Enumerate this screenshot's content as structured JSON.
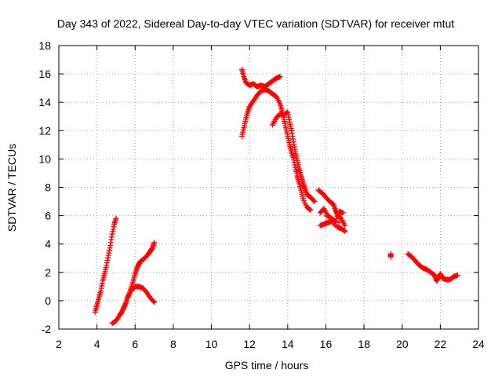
{
  "chart_data": {
    "type": "scatter",
    "title": "Day 343 of 2022, Sidereal Day-to-day VTEC variation (SDTVAR) for receiver mtut",
    "xlabel": "GPS time / hours",
    "ylabel": "SDTVAR / TECUs",
    "xlim": [
      2,
      24
    ],
    "ylim": [
      -2,
      18
    ],
    "grid": true,
    "xticks": [
      "2",
      "4",
      "6",
      "8",
      "10",
      "12",
      "14",
      "16",
      "18",
      "20",
      "22",
      "24"
    ],
    "yticks": [
      "-2",
      "0",
      "2",
      "4",
      "6",
      "8",
      "10",
      "12",
      "14",
      "16",
      "18"
    ],
    "marker": "+",
    "color": "#ff0000",
    "series": [
      {
        "name": "s1",
        "points": [
          [
            3.9,
            -0.8
          ],
          [
            4.0,
            -0.3
          ],
          [
            4.1,
            0.2
          ],
          [
            4.2,
            0.7
          ],
          [
            4.3,
            1.4
          ],
          [
            4.4,
            1.9
          ],
          [
            4.5,
            2.5
          ],
          [
            4.6,
            3.2
          ],
          [
            4.7,
            3.9
          ],
          [
            4.8,
            4.7
          ],
          [
            4.9,
            5.4
          ],
          [
            5.0,
            5.8
          ]
        ]
      },
      {
        "name": "s2",
        "points": [
          [
            4.8,
            -1.6
          ],
          [
            5.0,
            -1.4
          ],
          [
            5.2,
            -1.0
          ],
          [
            5.3,
            -0.8
          ],
          [
            5.4,
            -0.5
          ],
          [
            5.5,
            -0.2
          ],
          [
            5.6,
            0.2
          ],
          [
            5.7,
            0.5
          ],
          [
            5.8,
            0.9
          ],
          [
            5.9,
            1.4
          ],
          [
            6.0,
            1.9
          ],
          [
            6.1,
            2.3
          ],
          [
            6.2,
            2.6
          ],
          [
            6.3,
            2.8
          ],
          [
            6.5,
            3.0
          ],
          [
            6.7,
            3.3
          ],
          [
            6.8,
            3.5
          ],
          [
            6.9,
            3.7
          ],
          [
            7.0,
            4.1
          ]
        ]
      },
      {
        "name": "s3",
        "points": [
          [
            5.8,
            0.7
          ],
          [
            6.0,
            1.0
          ],
          [
            6.2,
            1.0
          ],
          [
            6.4,
            0.9
          ],
          [
            6.6,
            0.6
          ],
          [
            6.8,
            0.2
          ],
          [
            7.0,
            -0.1
          ]
        ]
      },
      {
        "name": "s4",
        "points": [
          [
            11.6,
            16.3
          ],
          [
            11.7,
            15.8
          ],
          [
            11.8,
            15.4
          ],
          [
            12.0,
            15.2
          ],
          [
            12.2,
            15.3
          ],
          [
            12.4,
            15.1
          ],
          [
            12.6,
            15.2
          ],
          [
            12.8,
            15.1
          ],
          [
            13.0,
            15.3
          ],
          [
            13.2,
            15.5
          ],
          [
            13.4,
            15.7
          ],
          [
            13.6,
            15.8
          ]
        ]
      },
      {
        "name": "s5",
        "points": [
          [
            11.6,
            11.6
          ],
          [
            11.7,
            12.2
          ],
          [
            11.8,
            12.8
          ],
          [
            11.9,
            13.3
          ],
          [
            12.0,
            13.7
          ],
          [
            12.2,
            14.1
          ],
          [
            12.4,
            14.5
          ],
          [
            12.6,
            14.8
          ],
          [
            12.8,
            14.9
          ],
          [
            13.0,
            14.8
          ],
          [
            13.2,
            14.6
          ],
          [
            13.4,
            14.4
          ],
          [
            13.6,
            13.9
          ],
          [
            13.7,
            13.4
          ],
          [
            13.8,
            12.8
          ],
          [
            13.9,
            12.2
          ],
          [
            14.0,
            11.6
          ],
          [
            14.1,
            11.0
          ],
          [
            14.2,
            10.5
          ],
          [
            14.3,
            10.1
          ],
          [
            14.4,
            9.4
          ],
          [
            14.5,
            8.8
          ],
          [
            14.6,
            8.3
          ],
          [
            14.7,
            7.8
          ],
          [
            14.8,
            7.2
          ],
          [
            15.0,
            6.6
          ],
          [
            15.2,
            6.4
          ]
        ]
      },
      {
        "name": "s6",
        "points": [
          [
            13.2,
            12.4
          ],
          [
            13.4,
            12.9
          ],
          [
            13.6,
            13.2
          ],
          [
            13.8,
            13.1
          ],
          [
            14.0,
            13.3
          ],
          [
            14.1,
            12.6
          ],
          [
            14.2,
            12.0
          ],
          [
            14.3,
            11.2
          ],
          [
            14.4,
            10.5
          ],
          [
            14.5,
            9.9
          ],
          [
            14.6,
            9.3
          ],
          [
            14.7,
            8.8
          ],
          [
            14.8,
            8.3
          ],
          [
            14.9,
            7.9
          ],
          [
            15.0,
            7.5
          ],
          [
            15.2,
            7.3
          ],
          [
            15.4,
            7.0
          ]
        ]
      },
      {
        "name": "s7",
        "points": [
          [
            15.6,
            7.8
          ],
          [
            15.8,
            7.6
          ],
          [
            16.0,
            7.3
          ],
          [
            16.2,
            7.0
          ],
          [
            16.4,
            6.8
          ],
          [
            16.5,
            6.4
          ],
          [
            16.6,
            6.1
          ],
          [
            16.8,
            5.8
          ],
          [
            17.0,
            5.3
          ],
          [
            15.7,
            6.2
          ],
          [
            15.9,
            6.5
          ],
          [
            16.1,
            6.0
          ],
          [
            16.3,
            5.8
          ],
          [
            16.5,
            5.6
          ],
          [
            16.7,
            6.3
          ],
          [
            16.9,
            6.2
          ],
          [
            15.7,
            5.3
          ],
          [
            15.9,
            5.4
          ],
          [
            16.1,
            5.5
          ],
          [
            16.3,
            5.6
          ],
          [
            16.6,
            5.2
          ],
          [
            16.8,
            5.1
          ],
          [
            17.0,
            4.9
          ]
        ]
      },
      {
        "name": "s8",
        "points": [
          [
            19.4,
            3.3
          ],
          [
            19.4,
            3.1
          ]
        ]
      },
      {
        "name": "s9",
        "points": [
          [
            20.3,
            3.3
          ],
          [
            20.5,
            3.1
          ],
          [
            20.7,
            2.8
          ],
          [
            20.9,
            2.5
          ],
          [
            21.1,
            2.3
          ],
          [
            21.3,
            2.2
          ],
          [
            21.5,
            2.0
          ],
          [
            21.7,
            1.8
          ],
          [
            21.8,
            1.4
          ],
          [
            21.9,
            1.6
          ],
          [
            22.0,
            1.9
          ],
          [
            22.1,
            1.6
          ],
          [
            22.3,
            1.5
          ],
          [
            22.5,
            1.5
          ],
          [
            22.7,
            1.7
          ],
          [
            22.9,
            1.8
          ]
        ]
      }
    ]
  }
}
